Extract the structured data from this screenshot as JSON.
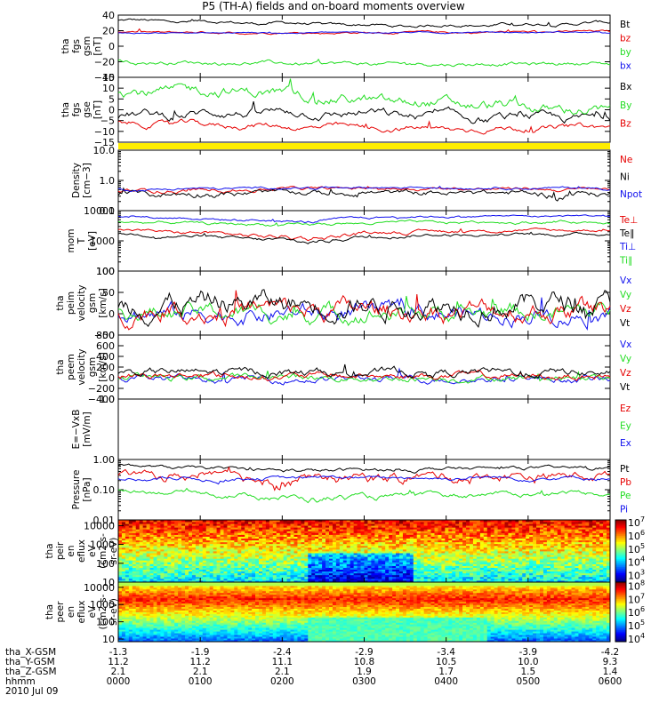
{
  "chart_data": {
    "type": "line",
    "title": "P5 (TH-A) fields and on-board moments overview",
    "colors": {
      "black": "#000000",
      "red": "#e60000",
      "green": "#22dd22",
      "blue": "#1010ee",
      "yellow": "#ffee00"
    },
    "panels": [
      {
        "id": "p1",
        "ylabel": [
          "tha",
          "fgs",
          "gsm",
          "[nT]"
        ],
        "scale": "linear",
        "ylim": [
          -40,
          40
        ],
        "ticks": [
          {
            "v": 40,
            "t": "40"
          },
          {
            "v": 20,
            "t": "20"
          },
          {
            "v": 0,
            "t": "0"
          },
          {
            "v": -20,
            "t": "−20"
          },
          {
            "v": -40,
            "t": "−40"
          }
        ],
        "series": [
          {
            "name": "Bt",
            "color": "black",
            "base": 32,
            "amp": 3,
            "noise": 1.2,
            "profile": [
              [
                0,
                33
              ],
              [
                0.3,
                30
              ],
              [
                0.55,
                26
              ],
              [
                0.8,
                28
              ],
              [
                1,
                30
              ]
            ]
          },
          {
            "name": "bz",
            "color": "red",
            "base": 18,
            "amp": 1.5,
            "noise": 0.8,
            "profile": [
              [
                0,
                18
              ],
              [
                0.5,
                17
              ],
              [
                1,
                19
              ]
            ]
          },
          {
            "name": "by",
            "color": "green",
            "base": -22,
            "amp": 2,
            "noise": 1.5,
            "profile": [
              [
                0,
                -20
              ],
              [
                0.3,
                -22
              ],
              [
                0.6,
                -23
              ],
              [
                1,
                -22
              ]
            ]
          },
          {
            "name": "bx",
            "color": "blue",
            "base": 17,
            "amp": 1,
            "noise": 0.5,
            "profile": [
              [
                0,
                17
              ],
              [
                1,
                18
              ]
            ]
          }
        ]
      },
      {
        "id": "p2",
        "ylabel": [
          "tha",
          "fgs",
          "gse",
          "[nT]"
        ],
        "scale": "linear",
        "ylim": [
          -15,
          15
        ],
        "ticks": [
          {
            "v": 15,
            "t": "15"
          },
          {
            "v": 10,
            "t": "10"
          },
          {
            "v": 5,
            "t": "5"
          },
          {
            "v": 0,
            "t": "0"
          },
          {
            "v": -5,
            "t": "−5"
          },
          {
            "v": -10,
            "t": "−10"
          },
          {
            "v": -15,
            "t": "−15"
          }
        ],
        "series": [
          {
            "name": "Bx",
            "color": "black",
            "base": -3,
            "amp": 2,
            "noise": 1.2,
            "profile": [
              [
                0,
                -3
              ],
              [
                0.3,
                -1
              ],
              [
                0.5,
                -2
              ],
              [
                0.75,
                -4
              ],
              [
                1,
                -4
              ]
            ]
          },
          {
            "name": "By",
            "color": "green",
            "base": 7,
            "amp": 2,
            "noise": 1.5,
            "profile": [
              [
                0,
                8
              ],
              [
                0.25,
                9
              ],
              [
                0.5,
                4
              ],
              [
                0.75,
                2
              ],
              [
                1,
                -1
              ]
            ]
          },
          {
            "name": "Bz",
            "color": "red",
            "base": -7,
            "amp": 1.5,
            "noise": 0.8,
            "profile": [
              [
                0,
                -6
              ],
              [
                0.4,
                -8
              ],
              [
                0.7,
                -9
              ],
              [
                1,
                -8
              ]
            ]
          }
        ]
      },
      {
        "id": "p3",
        "ylabel": [
          "Density",
          "[cm−3]"
        ],
        "scale": "log",
        "ylim": [
          0.1,
          10
        ],
        "ticks": [
          {
            "v": 10,
            "t": "10.0"
          },
          {
            "v": 1,
            "t": "1.0"
          },
          {
            "v": 0.1,
            "t": "0.1"
          }
        ],
        "series": [
          {
            "name": "Ne",
            "color": "red",
            "base": 0.45,
            "amp": 0.05,
            "noise": 0.04,
            "profile": [
              [
                0,
                0.45
              ],
              [
                0.5,
                0.55
              ],
              [
                1,
                0.5
              ]
            ]
          },
          {
            "name": "Ni",
            "color": "black",
            "base": 0.35,
            "amp": 0.05,
            "noise": 0.05,
            "profile": [
              [
                0,
                0.35
              ],
              [
                0.5,
                0.4
              ],
              [
                1,
                0.35
              ]
            ]
          },
          {
            "name": "Npot",
            "color": "blue",
            "base": 0.5,
            "amp": 0.05,
            "noise": 0.03,
            "profile": [
              [
                0,
                0.5
              ],
              [
                0.5,
                0.6
              ],
              [
                1,
                0.55
              ]
            ]
          }
        ]
      },
      {
        "id": "p4",
        "ylabel": [
          "mom",
          "T",
          "[eV]"
        ],
        "scale": "log",
        "ylim": [
          100,
          10000
        ],
        "ticks": [
          {
            "v": 10000,
            "t": "10000"
          },
          {
            "v": 1000,
            "t": "1000"
          },
          {
            "v": 100,
            "t": "100"
          }
        ],
        "series": [
          {
            "name": "Te⊥",
            "color": "red",
            "base": 2200,
            "amp": 200,
            "noise": 150,
            "profile": [
              [
                0,
                2300
              ],
              [
                0.38,
                1200
              ],
              [
                0.55,
                2000
              ],
              [
                1,
                2300
              ]
            ]
          },
          {
            "name": "Te∥",
            "color": "black",
            "base": 1600,
            "amp": 150,
            "noise": 100,
            "profile": [
              [
                0,
                1700
              ],
              [
                0.38,
                900
              ],
              [
                0.55,
                1500
              ],
              [
                1,
                1700
              ]
            ]
          },
          {
            "name": "Ti⊥",
            "color": "blue",
            "base": 6500,
            "amp": 400,
            "noise": 300,
            "profile": [
              [
                0,
                6500
              ],
              [
                0.38,
                4200
              ],
              [
                0.55,
                6300
              ],
              [
                1,
                6800
              ]
            ]
          },
          {
            "name": "Ti∥",
            "color": "green",
            "base": 4000,
            "amp": 300,
            "noise": 250,
            "profile": [
              [
                0,
                4200
              ],
              [
                0.38,
                3300
              ],
              [
                0.55,
                4000
              ],
              [
                1,
                4300
              ]
            ]
          }
        ]
      },
      {
        "id": "p5",
        "ylabel": [
          "tha",
          "peim",
          "velocity",
          "gsm",
          "[km/s]"
        ],
        "scale": "linear",
        "ylim": [
          -50,
          100
        ],
        "ticks": [
          {
            "v": 100,
            "t": "100"
          },
          {
            "v": 50,
            "t": "50"
          },
          {
            "v": 0,
            "t": "0"
          },
          {
            "v": -50,
            "t": "−50"
          }
        ],
        "series": [
          {
            "name": "Vx",
            "color": "blue",
            "base": 0,
            "amp": 5,
            "noise": 12,
            "profile": [
              [
                0,
                0
              ],
              [
                1,
                0
              ]
            ]
          },
          {
            "name": "Vy",
            "color": "green",
            "base": 2,
            "amp": 5,
            "noise": 12,
            "profile": [
              [
                0,
                2
              ],
              [
                1,
                2
              ]
            ]
          },
          {
            "name": "Vz",
            "color": "red",
            "base": 8,
            "amp": 5,
            "noise": 14,
            "profile": [
              [
                0,
                8
              ],
              [
                1,
                8
              ]
            ]
          },
          {
            "name": "Vt",
            "color": "black",
            "base": 25,
            "amp": 5,
            "noise": 16,
            "profile": [
              [
                0,
                25
              ],
              [
                1,
                25
              ]
            ]
          }
        ]
      },
      {
        "id": "p6",
        "ylabel": [
          "tha",
          "peem",
          "velocity",
          "gsm",
          "[km/s]"
        ],
        "scale": "linear",
        "ylim": [
          -400,
          800
        ],
        "ticks": [
          {
            "v": 800,
            "t": "800"
          },
          {
            "v": 600,
            "t": "600"
          },
          {
            "v": 400,
            "t": "400"
          },
          {
            "v": 200,
            "t": "200"
          },
          {
            "v": 0,
            "t": "0"
          },
          {
            "v": -200,
            "t": "−200"
          },
          {
            "v": -400,
            "t": "−400"
          }
        ],
        "series": [
          {
            "name": "Vx",
            "color": "blue",
            "base": -20,
            "amp": 10,
            "noise": 40,
            "profile": [
              [
                0,
                -20
              ],
              [
                1,
                -20
              ]
            ]
          },
          {
            "name": "Vy",
            "color": "green",
            "base": 0,
            "amp": 10,
            "noise": 40,
            "profile": [
              [
                0,
                0
              ],
              [
                1,
                0
              ]
            ]
          },
          {
            "name": "Vz",
            "color": "red",
            "base": 30,
            "amp": 10,
            "noise": 40,
            "profile": [
              [
                0,
                30
              ],
              [
                1,
                30
              ]
            ]
          },
          {
            "name": "Vt",
            "color": "black",
            "base": 100,
            "amp": 15,
            "noise": 45,
            "profile": [
              [
                0,
                100
              ],
              [
                1,
                100
              ]
            ]
          }
        ]
      },
      {
        "id": "p7",
        "ylabel": [
          "E=−VxB",
          "[mV/m]"
        ],
        "scale": "linear",
        "ylim": [
          -1,
          1
        ],
        "ticks": [
          {
            "v": 1,
            "t": "1.0"
          }
        ],
        "series": [
          {
            "name": "Ez",
            "color": "red",
            "empty": true
          },
          {
            "name": "Ey",
            "color": "green",
            "empty": true
          },
          {
            "name": "Ex",
            "color": "blue",
            "empty": true
          }
        ]
      },
      {
        "id": "p8",
        "ylabel": [
          "Pressure",
          "[nPa]"
        ],
        "scale": "log",
        "ylim": [
          0.01,
          1
        ],
        "ticks": [
          {
            "v": 1,
            "t": "1.00"
          },
          {
            "v": 0.1,
            "t": "0.10"
          },
          {
            "v": 0.01,
            "t": "0.01"
          }
        ],
        "series": [
          {
            "name": "Pt",
            "color": "black",
            "base": 0.55,
            "amp": 0.04,
            "noise": 0.04,
            "profile": [
              [
                0,
                0.6
              ],
              [
                0.35,
                0.42
              ],
              [
                0.7,
                0.5
              ],
              [
                1,
                0.55
              ]
            ]
          },
          {
            "name": "Pb",
            "color": "red",
            "base": 0.3,
            "amp": 0.05,
            "noise": 0.06,
            "profile": [
              [
                0,
                0.32
              ],
              [
                0.35,
                0.22
              ],
              [
                0.6,
                0.28
              ],
              [
                1,
                0.3
              ]
            ]
          },
          {
            "name": "Pe",
            "color": "green",
            "base": 0.09,
            "amp": 0.01,
            "noise": 0.008,
            "profile": [
              [
                0,
                0.1
              ],
              [
                0.4,
                0.05
              ],
              [
                0.7,
                0.07
              ],
              [
                1,
                0.08
              ]
            ]
          },
          {
            "name": "Pi",
            "color": "blue",
            "base": 0.23,
            "amp": 0.03,
            "noise": 0.02,
            "profile": [
              [
                0,
                0.22
              ],
              [
                0.4,
                0.25
              ],
              [
                1,
                0.25
              ]
            ]
          }
        ]
      }
    ],
    "spectrograms": [
      {
        "id": "s1",
        "ylabel": [
          "tha",
          "peir",
          "en",
          "eflux",
          "eV",
          "(cm2-s-",
          "sr-eV)"
        ],
        "scale": "log",
        "ylim": [
          10,
          20000
        ],
        "ticks": [
          {
            "v": 10000,
            "t": "10000"
          },
          {
            "v": 1000,
            "t": "1000"
          },
          {
            "v": 100,
            "t": "100"
          },
          {
            "v": 10,
            "t": "10"
          }
        ],
        "cbar": [
          {
            "t": "10",
            "e": "7"
          },
          {
            "t": "10",
            "e": "6"
          },
          {
            "t": "10",
            "e": "5"
          },
          {
            "t": "10",
            "e": "4"
          },
          {
            "t": "10",
            "e": "3"
          }
        ],
        "cbar_range": [
          2.5,
          7.2
        ]
      },
      {
        "id": "s2",
        "ylabel": [
          "tha",
          "peer",
          "en",
          "eflux",
          "eV",
          "(cm2-s-",
          "sr-eV)"
        ],
        "scale": "log",
        "ylim": [
          7,
          20000
        ],
        "ticks": [
          {
            "v": 10000,
            "t": "10000"
          },
          {
            "v": 1000,
            "t": "1000"
          },
          {
            "v": 100,
            "t": "100"
          },
          {
            "v": 10,
            "t": "10"
          }
        ],
        "cbar": [
          {
            "t": "10",
            "e": "8"
          },
          {
            "t": "10",
            "e": "7"
          },
          {
            "t": "10",
            "e": "6"
          },
          {
            "t": "10",
            "e": "5"
          },
          {
            "t": "10",
            "e": "4"
          }
        ],
        "cbar_range": [
          3.8,
          8.3
        ]
      }
    ],
    "xaxis": {
      "rows": [
        {
          "label": "tha_X-GSM",
          "values": [
            "-1.3",
            "-1.9",
            "-2.4",
            "-2.9",
            "-3.4",
            "-3.9",
            "-4.2"
          ]
        },
        {
          "label": "tha_Y-GSM",
          "values": [
            "11.2",
            "11.2",
            "11.1",
            "10.8",
            "10.5",
            "10.0",
            "9.3"
          ]
        },
        {
          "label": "tha_Z-GSM",
          "values": [
            "2.1",
            "2.1",
            "2.1",
            "1.9",
            "1.7",
            "1.5",
            "1.4"
          ]
        },
        {
          "label": "hhmm",
          "values": [
            "0000",
            "0100",
            "0200",
            "0300",
            "0400",
            "0500",
            "0600"
          ]
        }
      ],
      "date": "2010 Jul 09"
    }
  }
}
